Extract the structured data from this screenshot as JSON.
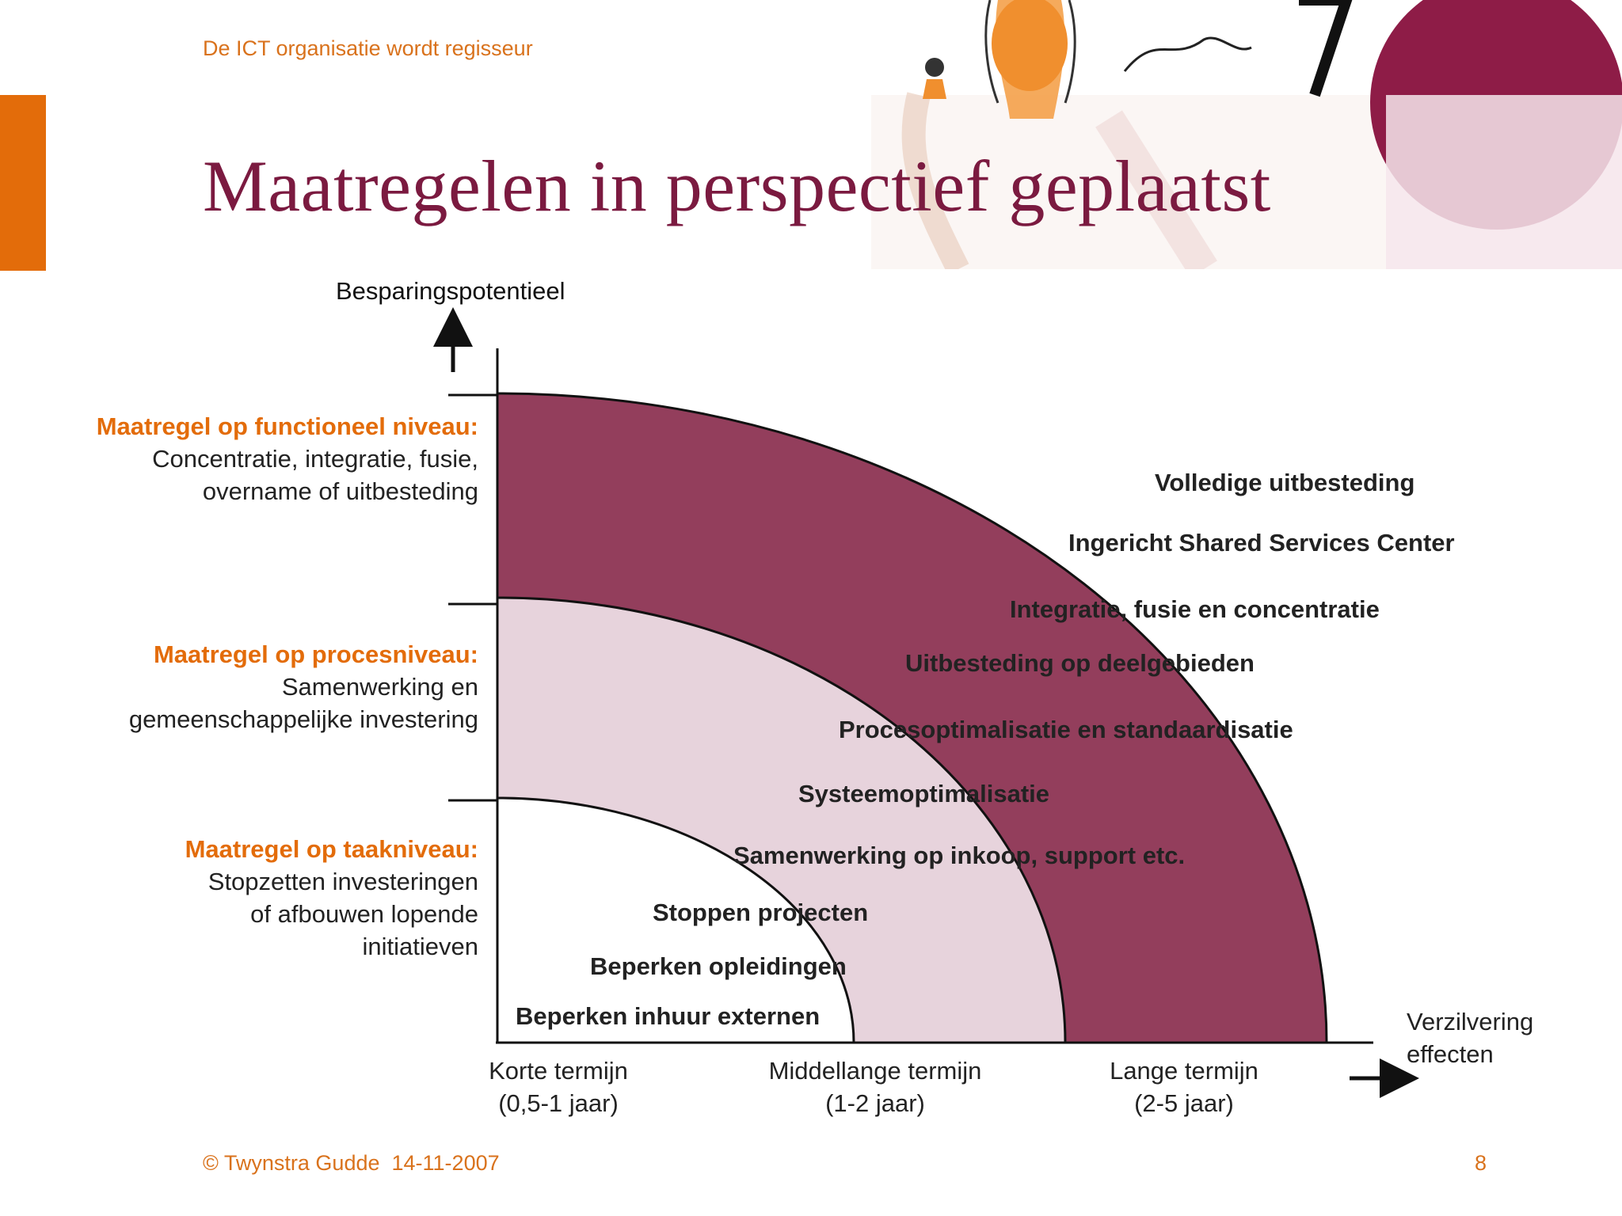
{
  "header": {
    "subtitle": "De ICT organisatie wordt regisseur",
    "title": "Maatregelen in perspectief geplaatst"
  },
  "diagram": {
    "y_axis_title": "Besparingspotentieel",
    "x_axis_title": [
      "Verzilvering",
      "effecten"
    ],
    "levels": [
      {
        "head": "Maatregel op functioneel niveau:",
        "lines": [
          "Concentratie, integratie, fusie,",
          "overname of uitbesteding"
        ]
      },
      {
        "head": "Maatregel op procesniveau:",
        "lines": [
          "Samenwerking en",
          "gemeenschappelijke investering"
        ]
      },
      {
        "head": "Maatregel op taakniveau:",
        "lines": [
          "Stopzetten investeringen",
          "of afbouwen lopende",
          "initiatieven"
        ]
      }
    ],
    "x_labels": [
      {
        "line1": "Korte termijn",
        "line2": "(0,5-1 jaar)"
      },
      {
        "line1": "Middellange termijn",
        "line2": "(1-2 jaar)"
      },
      {
        "line1": "Lange termijn",
        "line2": "(2-5 jaar)"
      }
    ],
    "measures": [
      "Volledige uitbesteding",
      "Ingericht Shared Services Center",
      "Integratie, fusie en concentratie",
      "Uitbesteding op deelgebieden",
      "Procesoptimalisatie en standaardisatie",
      "Systeemoptimalisatie",
      "Samenwerking op inkoop, support etc.",
      "Stoppen projecten",
      "Beperken opleidingen",
      "Beperken inhuur externen"
    ],
    "colors": {
      "outer_band": "#933e5c",
      "middle_band": "#e7d3dc",
      "inner_band": "#ffffff",
      "accent_orange": "#e36c0a",
      "title_color": "#7b1a40"
    }
  },
  "footer": {
    "copyright": "© Twynstra Gudde  14-11-2007",
    "page_number": "8"
  }
}
